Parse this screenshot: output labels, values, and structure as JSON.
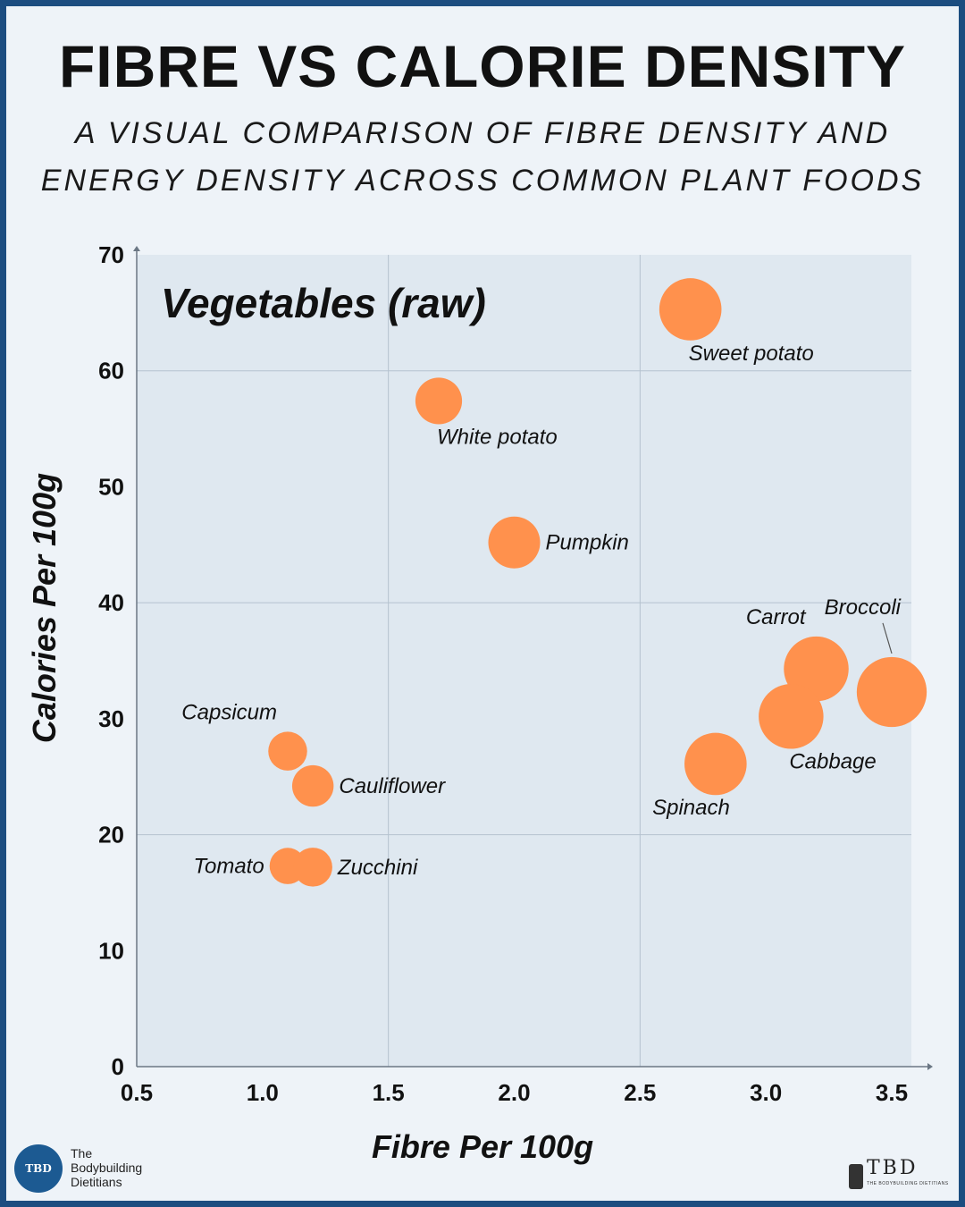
{
  "title": "FIBRE VS CALORIE DENSITY",
  "subtitle_line1": "A VISUAL COMPARISON OF FIBRE DENSITY AND",
  "subtitle_line2": "ENERGY DENSITY ACROSS COMMON PLANT FOODS",
  "colors": {
    "accent": "#ff914d",
    "frame": "#1c4d80",
    "background": "#eef3f8",
    "plot_background": "#dfe8f0",
    "grid": "#b5c2cf"
  },
  "brand": {
    "left_badge": "TBD",
    "left_line1": "The",
    "left_line2": "Bodybuilding",
    "left_line3": "Dietitians",
    "right_mark": "TBD",
    "right_tagline": "THE BODYBUILDING DIETITIANS"
  },
  "chart_data": {
    "type": "scatter",
    "title": "Vegetables (raw)",
    "xlabel": "Fibre Per 100g",
    "ylabel": "Calories Per 100g",
    "xlim": [
      0.5,
      3.6
    ],
    "ylim": [
      0,
      70
    ],
    "xticks": [
      0.5,
      1.0,
      1.5,
      2.0,
      2.5,
      3.0,
      3.5
    ],
    "xtick_labels": [
      "0.5",
      "1.0",
      "1.5",
      "2.0",
      "2.5",
      "3.0",
      "3.5"
    ],
    "yticks": [
      0,
      10,
      20,
      30,
      40,
      50,
      60,
      70
    ],
    "ytick_labels": [
      "0",
      "10",
      "20",
      "30",
      "40",
      "50",
      "60",
      "70"
    ],
    "gridlines_x": [
      1.5,
      2.5
    ],
    "gridlines_y": [
      20,
      40,
      60
    ],
    "points": [
      {
        "label": "Sweet potato",
        "x": 2.7,
        "y": 65.3,
        "size": 1.2,
        "label_pos": "below-right"
      },
      {
        "label": "White potato",
        "x": 1.7,
        "y": 57.4,
        "size": 0.9,
        "label_pos": "below-right"
      },
      {
        "label": "Pumpkin",
        "x": 2.0,
        "y": 45.2,
        "size": 1.0,
        "label_pos": "right"
      },
      {
        "label": "Broccoli",
        "x": 3.5,
        "y": 32.3,
        "size": 1.35,
        "label_pos": "above-leader"
      },
      {
        "label": "Carrot",
        "x": 3.2,
        "y": 34.3,
        "size": 1.25,
        "label_pos": "above-left"
      },
      {
        "label": "Cabbage",
        "x": 3.1,
        "y": 30.2,
        "size": 1.25,
        "label_pos": "below-right"
      },
      {
        "label": "Spinach",
        "x": 2.8,
        "y": 26.1,
        "size": 1.2,
        "label_pos": "below-left"
      },
      {
        "label": "Capsicum",
        "x": 1.1,
        "y": 27.2,
        "size": 0.75,
        "label_pos": "above-left"
      },
      {
        "label": "Cauliflower",
        "x": 1.2,
        "y": 24.2,
        "size": 0.8,
        "label_pos": "right"
      },
      {
        "label": "Tomato",
        "x": 1.1,
        "y": 17.3,
        "size": 0.7,
        "label_pos": "left"
      },
      {
        "label": "Zucchini",
        "x": 1.2,
        "y": 17.2,
        "size": 0.75,
        "label_pos": "right"
      }
    ]
  }
}
